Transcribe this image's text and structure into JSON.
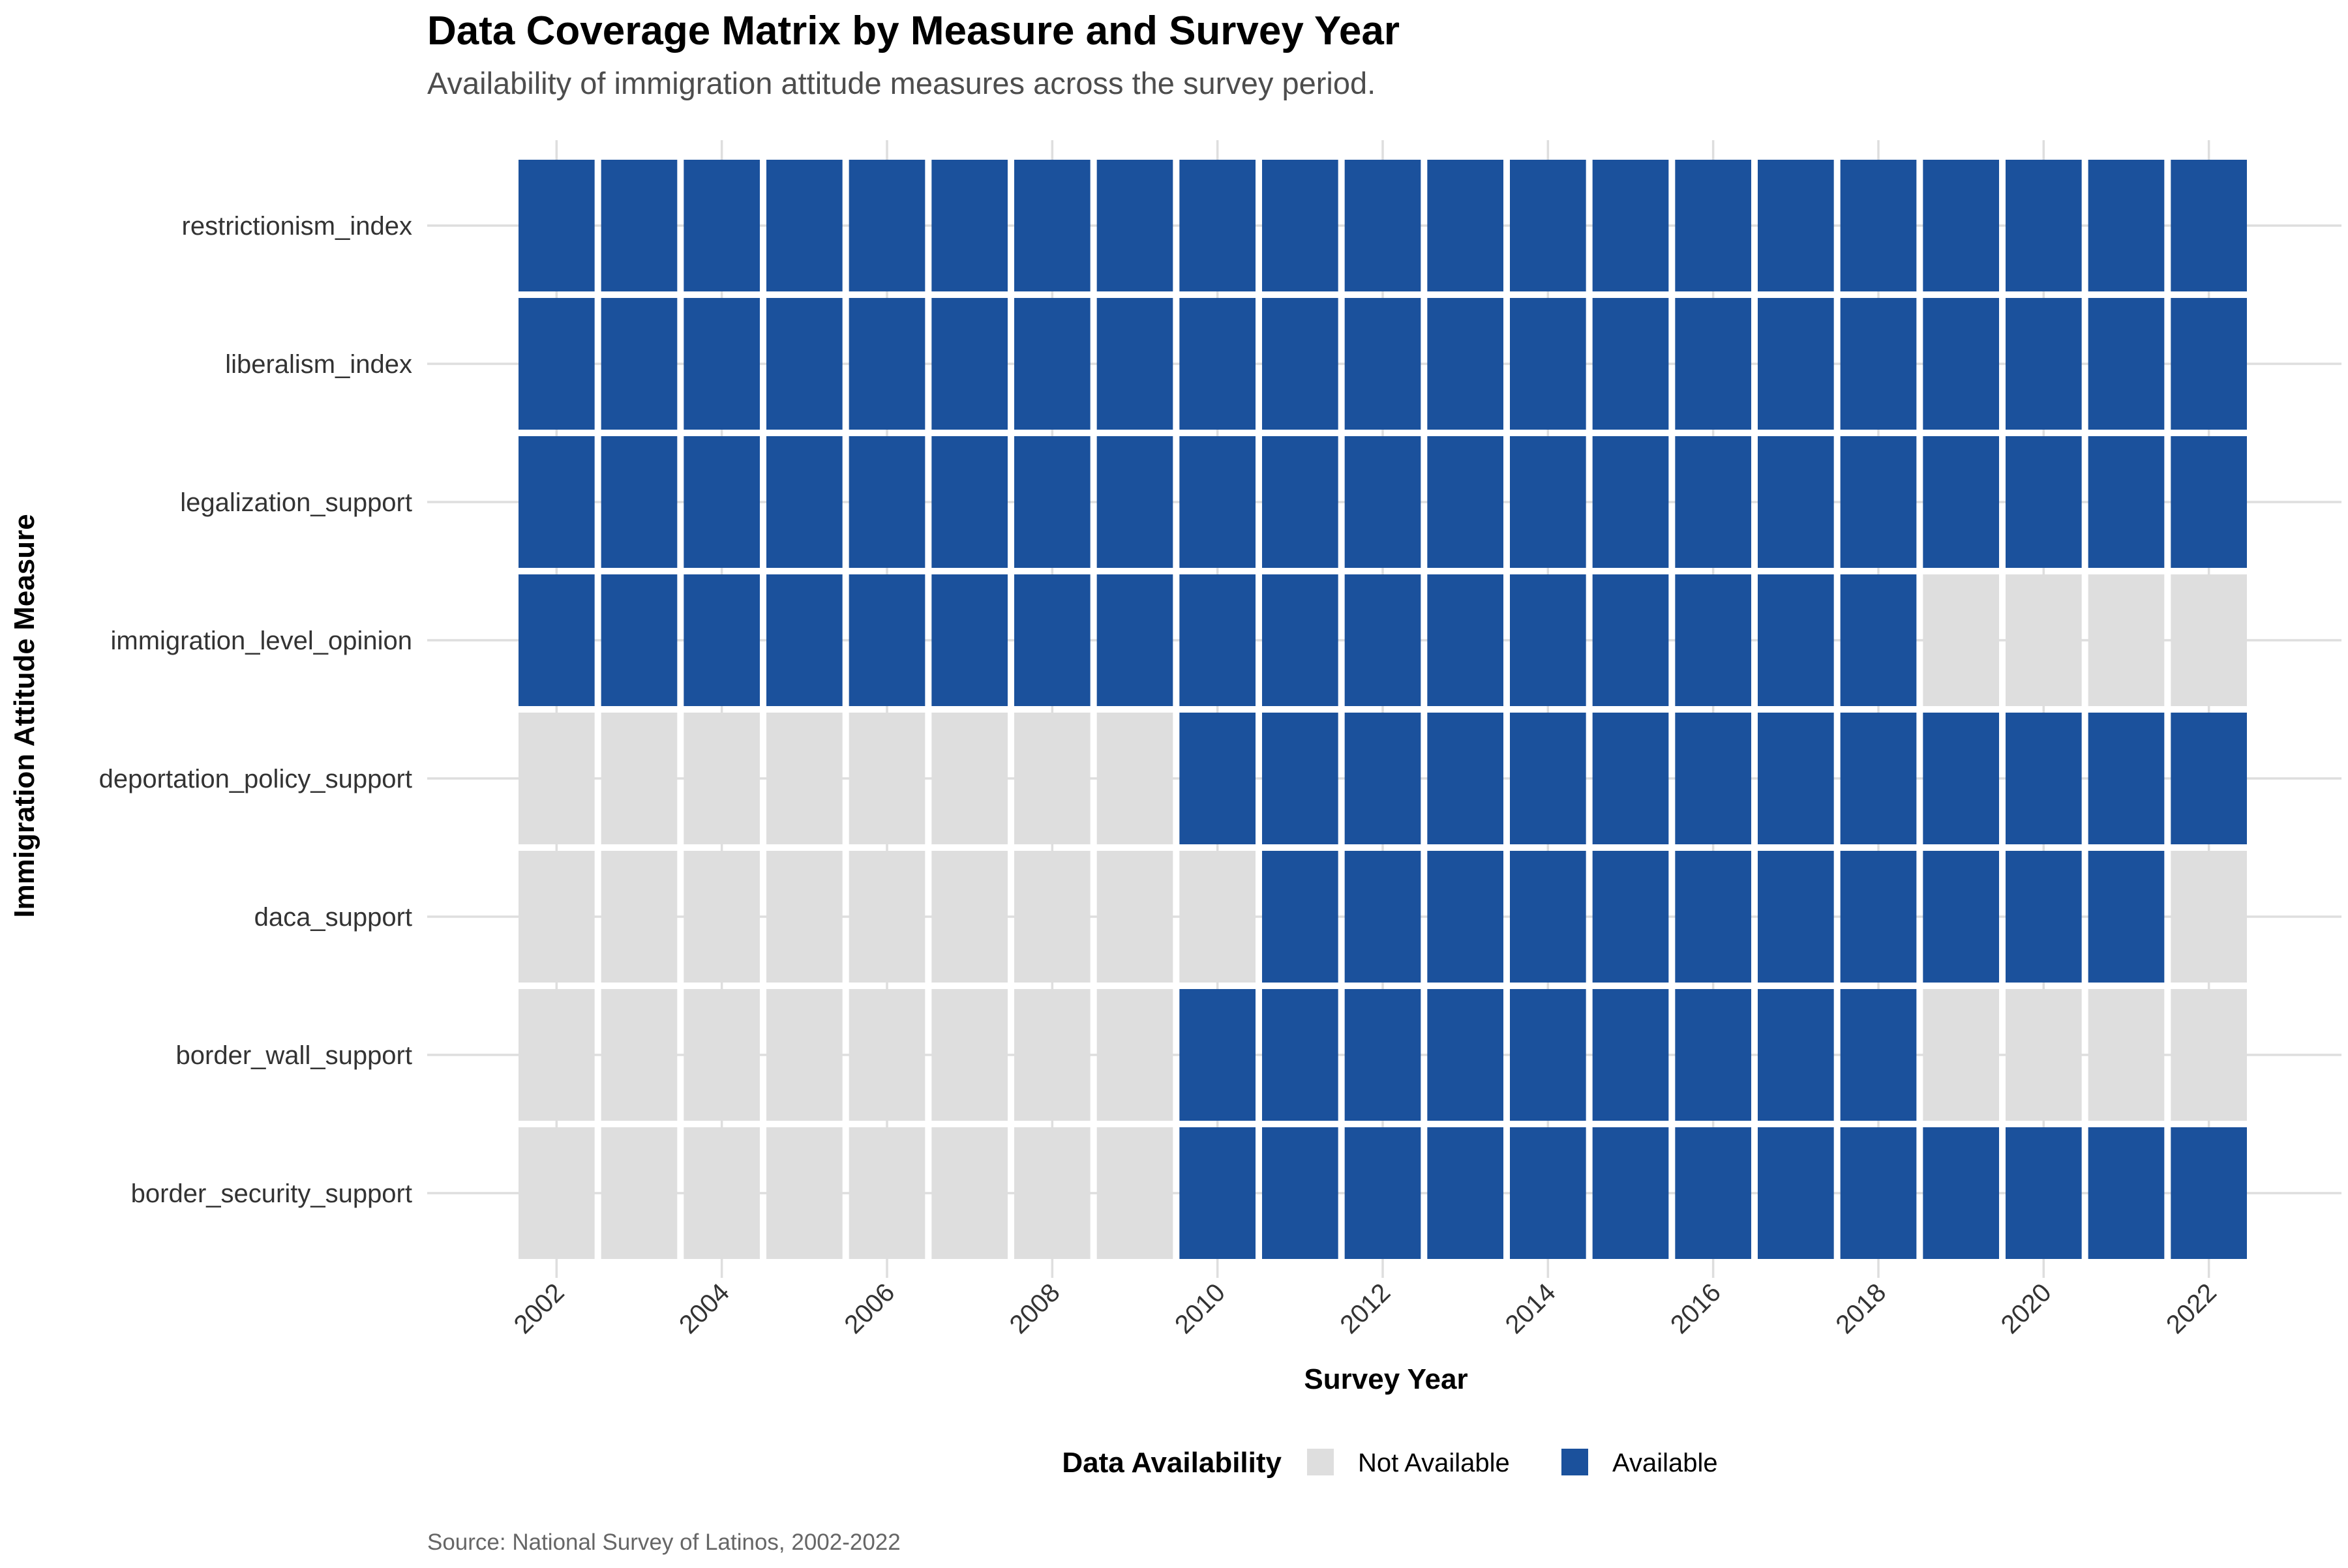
{
  "chart_data": {
    "type": "heatmap",
    "title": "Data Coverage Matrix by Measure and Survey Year",
    "subtitle": "Availability of immigration attitude measures across the survey period.",
    "xlabel": "Survey Year",
    "ylabel": "Immigration Attitude Measure",
    "caption": "Source: National Survey of Latinos, 2002-2022",
    "x_ticks": [
      "2002",
      "2004",
      "2006",
      "2008",
      "2010",
      "2012",
      "2014",
      "2016",
      "2018",
      "2020",
      "2022"
    ],
    "years": [
      2002,
      2003,
      2004,
      2005,
      2006,
      2007,
      2008,
      2009,
      2010,
      2011,
      2012,
      2013,
      2014,
      2015,
      2016,
      2017,
      2018,
      2019,
      2020,
      2021,
      2022
    ],
    "measures": [
      "restrictionism_index",
      "liberalism_index",
      "legalization_support",
      "immigration_level_opinion",
      "deportation_policy_support",
      "daca_support",
      "border_wall_support",
      "border_security_support"
    ],
    "availability": [
      [
        1,
        1,
        1,
        1,
        1,
        1,
        1,
        1,
        1,
        1,
        1,
        1,
        1,
        1,
        1,
        1,
        1,
        1,
        1,
        1,
        1
      ],
      [
        1,
        1,
        1,
        1,
        1,
        1,
        1,
        1,
        1,
        1,
        1,
        1,
        1,
        1,
        1,
        1,
        1,
        1,
        1,
        1,
        1
      ],
      [
        1,
        1,
        1,
        1,
        1,
        1,
        1,
        1,
        1,
        1,
        1,
        1,
        1,
        1,
        1,
        1,
        1,
        1,
        1,
        1,
        1
      ],
      [
        1,
        1,
        1,
        1,
        1,
        1,
        1,
        1,
        1,
        1,
        1,
        1,
        1,
        1,
        1,
        1,
        1,
        0,
        0,
        0,
        0
      ],
      [
        0,
        0,
        0,
        0,
        0,
        0,
        0,
        0,
        1,
        1,
        1,
        1,
        1,
        1,
        1,
        1,
        1,
        1,
        1,
        1,
        1
      ],
      [
        0,
        0,
        0,
        0,
        0,
        0,
        0,
        0,
        0,
        1,
        1,
        1,
        1,
        1,
        1,
        1,
        1,
        1,
        1,
        1,
        0
      ],
      [
        0,
        0,
        0,
        0,
        0,
        0,
        0,
        0,
        1,
        1,
        1,
        1,
        1,
        1,
        1,
        1,
        1,
        0,
        0,
        0,
        0
      ],
      [
        0,
        0,
        0,
        0,
        0,
        0,
        0,
        0,
        1,
        1,
        1,
        1,
        1,
        1,
        1,
        1,
        1,
        1,
        1,
        1,
        1
      ]
    ],
    "legend": {
      "title": "Data Availability",
      "placement": "bottom",
      "items": [
        {
          "label": "Not Available",
          "value": 0,
          "color": "#dedede"
        },
        {
          "label": "Available",
          "value": 1,
          "color": "#1b519c"
        }
      ]
    },
    "grid": true
  }
}
